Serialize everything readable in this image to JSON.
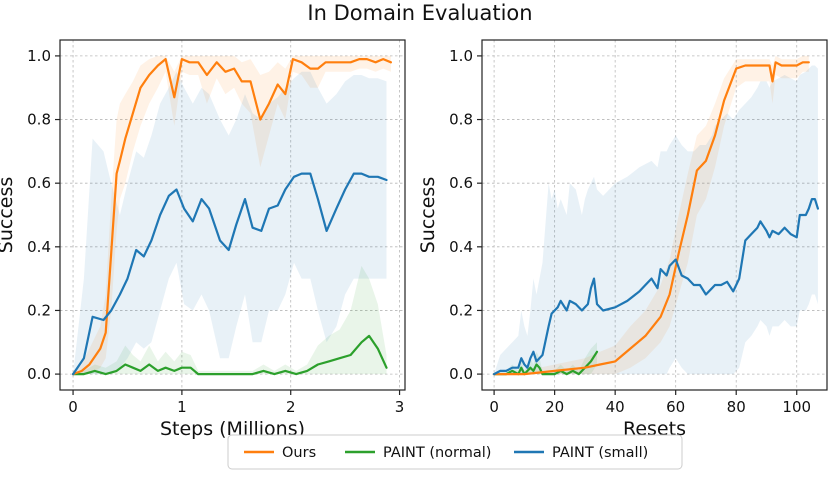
{
  "figure": {
    "title": "In Domain Evaluation",
    "legend": {
      "placement": "bottom-center",
      "entries": [
        {
          "name": "Ours",
          "color": "#ff7f0e"
        },
        {
          "name": "PAINT (normal)",
          "color": "#2ca02c"
        },
        {
          "name": "PAINT (small)",
          "color": "#1f77b4"
        }
      ]
    }
  },
  "chart_data": [
    {
      "type": "line",
      "xlabel": "Steps (Millions)",
      "ylabel": "Success",
      "xlim": [
        -0.12,
        3.05
      ],
      "ylim": [
        -0.05,
        1.05
      ],
      "xticks": [
        0,
        1,
        2,
        3
      ],
      "yticks": [
        0.0,
        0.2,
        0.4,
        0.6,
        0.8,
        1.0
      ],
      "xtick_labels": [
        "0",
        "1",
        "2",
        "3"
      ],
      "ytick_labels": [
        "0.0",
        "0.2",
        "0.4",
        "0.6",
        "0.8",
        "1.0"
      ],
      "grid": true,
      "series": [
        {
          "name": "Ours",
          "color": "#ff7f0e",
          "x": [
            0,
            0.08,
            0.15,
            0.25,
            0.3,
            0.35,
            0.4,
            0.43,
            0.48,
            0.55,
            0.62,
            0.7,
            0.78,
            0.85,
            0.93,
            1.0,
            1.07,
            1.15,
            1.23,
            1.32,
            1.4,
            1.48,
            1.55,
            1.63,
            1.72,
            1.8,
            1.88,
            1.95,
            2.02,
            2.1,
            2.18,
            2.25,
            2.32,
            2.4,
            2.47,
            2.55,
            2.63,
            2.7,
            2.78,
            2.85,
            2.92
          ],
          "y": [
            0,
            0.01,
            0.03,
            0.08,
            0.13,
            0.38,
            0.63,
            0.67,
            0.74,
            0.82,
            0.9,
            0.94,
            0.97,
            0.99,
            0.87,
            0.99,
            0.98,
            0.98,
            0.94,
            0.98,
            0.95,
            0.96,
            0.92,
            0.92,
            0.8,
            0.85,
            0.91,
            0.88,
            0.99,
            0.98,
            0.96,
            0.96,
            0.98,
            0.98,
            0.98,
            0.98,
            0.99,
            0.99,
            0.98,
            0.99,
            0.98
          ],
          "lower": [
            0,
            0,
            0,
            0.02,
            0.05,
            0.2,
            0.45,
            0.55,
            0.6,
            0.7,
            0.78,
            0.85,
            0.9,
            0.95,
            0.78,
            0.95,
            0.94,
            0.94,
            0.85,
            0.93,
            0.88,
            0.9,
            0.85,
            0.82,
            0.65,
            0.75,
            0.85,
            0.8,
            0.95,
            0.94,
            0.9,
            0.9,
            0.95,
            0.95,
            0.95,
            0.95,
            0.96,
            0.96,
            0.95,
            0.96,
            0.95
          ],
          "upper": [
            0,
            0.03,
            0.08,
            0.15,
            0.25,
            0.55,
            0.8,
            0.85,
            0.88,
            0.92,
            0.97,
            0.99,
            1,
            1,
            0.95,
            1,
            1,
            1,
            1,
            1,
            1,
            1,
            0.98,
            0.99,
            0.94,
            0.95,
            0.98,
            0.96,
            1,
            1,
            1,
            1,
            1,
            1,
            1,
            1,
            1,
            1,
            1,
            1,
            1
          ]
        },
        {
          "name": "PAINT (normal)",
          "color": "#2ca02c",
          "x": [
            0,
            0.1,
            0.2,
            0.3,
            0.4,
            0.48,
            0.55,
            0.62,
            0.7,
            0.78,
            0.85,
            0.93,
            1.0,
            1.08,
            1.15,
            1.25,
            1.35,
            1.45,
            1.55,
            1.65,
            1.75,
            1.85,
            1.95,
            2.05,
            2.15,
            2.25,
            2.35,
            2.45,
            2.55,
            2.65,
            2.72,
            2.8,
            2.88
          ],
          "y": [
            0,
            0.0,
            0.01,
            0.0,
            0.01,
            0.03,
            0.02,
            0.01,
            0.03,
            0.01,
            0.02,
            0.01,
            0.02,
            0.02,
            0.0,
            0.0,
            0.0,
            0.0,
            0.0,
            0.0,
            0.01,
            0.0,
            0.01,
            0.0,
            0.01,
            0.03,
            0.04,
            0.05,
            0.06,
            0.1,
            0.12,
            0.08,
            0.02
          ],
          "lower": [
            0,
            0,
            0,
            0,
            0,
            0,
            0,
            0,
            0,
            0,
            0,
            0,
            0,
            0,
            0,
            0,
            0,
            0,
            0,
            0,
            0,
            0,
            0,
            0,
            0,
            0,
            0,
            0,
            0,
            0,
            0,
            0,
            0
          ],
          "upper": [
            0,
            0.01,
            0.03,
            0.02,
            0.04,
            0.09,
            0.06,
            0.04,
            0.09,
            0.04,
            0.07,
            0.04,
            0.07,
            0.06,
            0.01,
            0.01,
            0.01,
            0.01,
            0.01,
            0.01,
            0.03,
            0.01,
            0.03,
            0.01,
            0.03,
            0.09,
            0.12,
            0.14,
            0.2,
            0.34,
            0.3,
            0.22,
            0.06
          ]
        },
        {
          "name": "PAINT (small)",
          "color": "#1f77b4",
          "x": [
            0,
            0.1,
            0.18,
            0.28,
            0.35,
            0.43,
            0.5,
            0.58,
            0.65,
            0.72,
            0.8,
            0.88,
            0.95,
            1.02,
            1.1,
            1.18,
            1.25,
            1.35,
            1.43,
            1.5,
            1.58,
            1.65,
            1.73,
            1.8,
            1.88,
            1.95,
            2.03,
            2.1,
            2.18,
            2.25,
            2.33,
            2.42,
            2.5,
            2.58,
            2.65,
            2.72,
            2.8,
            2.88
          ],
          "y": [
            0,
            0.05,
            0.18,
            0.17,
            0.2,
            0.25,
            0.3,
            0.39,
            0.37,
            0.42,
            0.5,
            0.56,
            0.58,
            0.52,
            0.48,
            0.55,
            0.52,
            0.42,
            0.39,
            0.47,
            0.55,
            0.46,
            0.45,
            0.52,
            0.53,
            0.58,
            0.62,
            0.63,
            0.63,
            0.55,
            0.45,
            0.52,
            0.58,
            0.63,
            0.63,
            0.62,
            0.62,
            0.61
          ],
          "lower": [
            0,
            0,
            0,
            0,
            0,
            0.02,
            0.05,
            0.1,
            0.08,
            0.1,
            0.2,
            0.3,
            0.35,
            0.22,
            0.2,
            0.25,
            0.2,
            0.05,
            0.05,
            0.15,
            0.25,
            0.1,
            0.1,
            0.2,
            0.2,
            0.25,
            0.35,
            0.3,
            0.3,
            0.2,
            0.1,
            0.15,
            0.25,
            0.3,
            0.3,
            0.3,
            0.3,
            0.3
          ],
          "upper": [
            0,
            0.3,
            0.74,
            0.7,
            0.6,
            0.5,
            0.6,
            0.7,
            0.68,
            0.75,
            0.85,
            0.9,
            0.95,
            0.9,
            0.85,
            0.9,
            0.88,
            0.8,
            0.75,
            0.8,
            0.88,
            0.82,
            0.8,
            0.85,
            0.87,
            0.9,
            0.93,
            0.95,
            0.95,
            0.9,
            0.85,
            0.88,
            0.92,
            0.94,
            0.94,
            0.93,
            0.93,
            0.92
          ]
        }
      ]
    },
    {
      "type": "line",
      "xlabel": "Resets",
      "ylabel": "Success",
      "xlim": [
        -4,
        110
      ],
      "ylim": [
        -0.05,
        1.05
      ],
      "xticks": [
        0,
        20,
        40,
        60,
        80,
        100
      ],
      "yticks": [
        0.0,
        0.2,
        0.4,
        0.6,
        0.8,
        1.0
      ],
      "xtick_labels": [
        "0",
        "20",
        "40",
        "60",
        "80",
        "100"
      ],
      "ytick_labels": [
        "0.0",
        "0.2",
        "0.4",
        "0.6",
        "0.8",
        "1.0"
      ],
      "grid": true,
      "series": [
        {
          "name": "Ours",
          "color": "#ff7f0e",
          "x": [
            0,
            10,
            20,
            30,
            35,
            40,
            45,
            50,
            55,
            58,
            61,
            64,
            67,
            70,
            73,
            76,
            80,
            83,
            86,
            89,
            91,
            92,
            93,
            95,
            97,
            100,
            102,
            104
          ],
          "y": [
            0,
            0.0,
            0.01,
            0.02,
            0.03,
            0.04,
            0.08,
            0.12,
            0.18,
            0.25,
            0.38,
            0.5,
            0.64,
            0.67,
            0.75,
            0.86,
            0.96,
            0.97,
            0.97,
            0.97,
            0.97,
            0.92,
            0.98,
            0.97,
            0.97,
            0.97,
            0.98,
            0.98
          ],
          "lower": [
            0,
            0,
            0,
            0,
            0,
            0,
            0.02,
            0.05,
            0.1,
            0.15,
            0.25,
            0.35,
            0.5,
            0.55,
            0.65,
            0.78,
            0.9,
            0.92,
            0.92,
            0.92,
            0.92,
            0.85,
            0.94,
            0.93,
            0.93,
            0.93,
            0.95,
            0.95
          ],
          "upper": [
            0,
            0.01,
            0.03,
            0.05,
            0.07,
            0.09,
            0.15,
            0.2,
            0.28,
            0.36,
            0.5,
            0.63,
            0.75,
            0.78,
            0.85,
            0.93,
            0.99,
            0.99,
            0.99,
            0.99,
            0.99,
            0.97,
            1,
            0.99,
            0.99,
            0.99,
            1,
            1
          ]
        },
        {
          "name": "PAINT (normal)",
          "color": "#2ca02c",
          "x": [
            0,
            2,
            4,
            6,
            8,
            9,
            10,
            12,
            13,
            14,
            15,
            16,
            18,
            20,
            22,
            24,
            26,
            28,
            30,
            32,
            34
          ],
          "y": [
            0,
            0.0,
            0.0,
            0.01,
            0.0,
            0.02,
            0.0,
            0.02,
            0.01,
            0.03,
            0.02,
            0.0,
            0.0,
            0.0,
            0.01,
            0.0,
            0.01,
            0.0,
            0.02,
            0.04,
            0.07
          ],
          "lower": [
            0,
            0,
            0,
            0,
            0,
            0,
            0,
            0,
            0,
            0,
            0,
            0,
            0,
            0,
            0,
            0,
            0,
            0,
            0,
            0,
            0.03
          ],
          "upper": [
            0,
            0.01,
            0.01,
            0.03,
            0.01,
            0.05,
            0.01,
            0.05,
            0.03,
            0.07,
            0.05,
            0.01,
            0.01,
            0.01,
            0.03,
            0.01,
            0.03,
            0.01,
            0.05,
            0.08,
            0.1
          ]
        },
        {
          "name": "PAINT (small)",
          "color": "#1f77b4",
          "x": [
            0,
            2,
            4,
            6,
            8,
            9,
            10,
            11,
            12,
            13,
            14,
            16,
            18,
            19,
            20,
            21,
            22,
            24,
            25,
            27,
            29,
            30,
            31,
            32,
            33,
            34,
            36,
            40,
            44,
            48,
            50,
            52,
            54,
            55,
            57,
            58,
            60,
            62,
            64,
            66,
            68,
            70,
            72,
            73,
            75,
            77,
            79,
            81,
            83,
            85,
            87,
            88,
            90,
            91,
            92,
            94,
            96,
            98,
            100,
            101,
            103,
            104,
            105,
            106,
            107
          ],
          "y": [
            0,
            0.01,
            0.01,
            0.02,
            0.02,
            0.05,
            0.03,
            0.02,
            0.05,
            0.07,
            0.04,
            0.06,
            0.15,
            0.19,
            0.2,
            0.21,
            0.23,
            0.2,
            0.23,
            0.22,
            0.2,
            0.21,
            0.22,
            0.27,
            0.3,
            0.22,
            0.2,
            0.21,
            0.23,
            0.26,
            0.28,
            0.3,
            0.27,
            0.33,
            0.31,
            0.34,
            0.36,
            0.31,
            0.3,
            0.28,
            0.28,
            0.25,
            0.27,
            0.28,
            0.28,
            0.29,
            0.26,
            0.3,
            0.42,
            0.44,
            0.46,
            0.48,
            0.45,
            0.43,
            0.45,
            0.44,
            0.46,
            0.44,
            0.43,
            0.5,
            0.5,
            0.52,
            0.55,
            0.55,
            0.52
          ],
          "lower": [
            0,
            0,
            0,
            0,
            0,
            0,
            0,
            0,
            0,
            0,
            0,
            0,
            0,
            0,
            0,
            0,
            0,
            0,
            0,
            0,
            0,
            0,
            0,
            0,
            0,
            0,
            0,
            0,
            0,
            0,
            0,
            0,
            0,
            0,
            0,
            0.02,
            0.05,
            0.02,
            0,
            0,
            0,
            0,
            0,
            0,
            0,
            0,
            0,
            0.02,
            0.1,
            0.12,
            0.15,
            0.17,
            0.15,
            0.12,
            0.15,
            0.15,
            0.17,
            0.15,
            0.15,
            0.2,
            0.2,
            0.22,
            0.25,
            0.25,
            0.22
          ],
          "upper": [
            0,
            0.06,
            0.08,
            0.1,
            0.12,
            0.2,
            0.15,
            0.12,
            0.2,
            0.3,
            0.25,
            0.35,
            0.6,
            0.55,
            0.58,
            0.52,
            0.55,
            0.5,
            0.6,
            0.58,
            0.5,
            0.55,
            0.58,
            0.6,
            0.62,
            0.58,
            0.56,
            0.6,
            0.62,
            0.65,
            0.66,
            0.67,
            0.65,
            0.7,
            0.7,
            0.72,
            0.75,
            0.72,
            0.7,
            0.7,
            0.72,
            0.72,
            0.75,
            0.78,
            0.8,
            0.82,
            0.8,
            0.83,
            0.85,
            0.87,
            0.9,
            0.92,
            0.92,
            0.9,
            0.92,
            0.93,
            0.94,
            0.93,
            0.92,
            0.94,
            0.95,
            0.96,
            0.97,
            0.97,
            0.96
          ]
        }
      ]
    }
  ]
}
